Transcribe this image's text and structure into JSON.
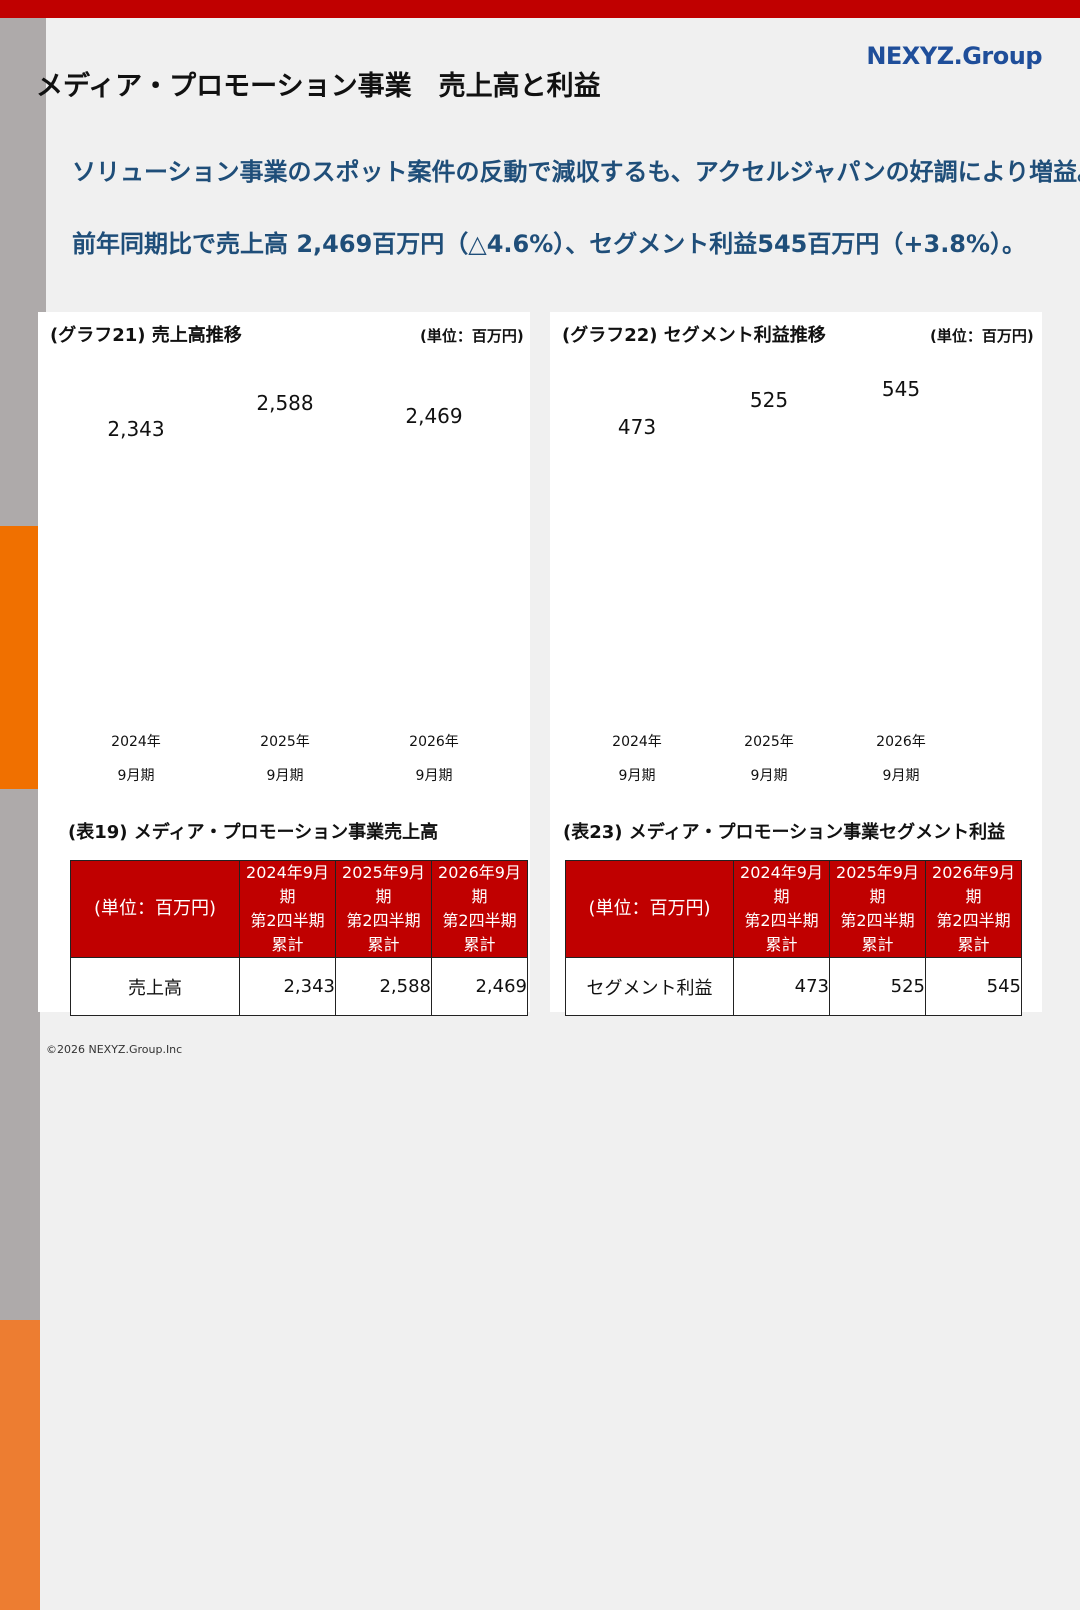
{
  "header": {
    "title": "メディア・プロモーション事業　売上高と利益",
    "logo": "NEXYZ.Group"
  },
  "headline": [
    "ソリューション事業のスポット案件の反動で減収するも、アクセルジャパンの好調により増益。",
    "前年同期比で売上高 2,469百万円（△4.6%）、セグメント利益545百万円（+3.8%）。"
  ],
  "chart_data": [
    {
      "type": "bar",
      "title": "(グラフ21) 売上高推移",
      "unit": "(単位：百万円)",
      "categories": [
        "2024年\n9月期",
        "2025年\n9月期",
        "2026年\n9月期"
      ],
      "values": [
        2343,
        2588,
        2469
      ],
      "value_labels": [
        "2,343",
        "2,588",
        "2,469"
      ],
      "colors": [
        "#aeaaaa",
        "#aeaaaa",
        "#f07000"
      ]
    },
    {
      "type": "bar",
      "title": "(グラフ22) セグメント利益推移",
      "unit": "(単位：百万円)",
      "categories": [
        "2024年\n9月期",
        "2025年\n9月期",
        "2026年\n9月期"
      ],
      "values": [
        473,
        525,
        545
      ],
      "colors": [
        "#aeaaaa",
        "#aeaaaa",
        "#ed7d31"
      ]
    }
  ],
  "tables": [
    {
      "caption": "(表19) メディア・プロモーション事業売上高",
      "header": [
        "(単位：百万円)",
        "2024年9月期\n第2四半期\n累計",
        "2025年9月期\n第2四半期\n累計",
        "2026年9月期\n第2四半期\n累計"
      ],
      "rows": [
        [
          "売上高",
          "2,343",
          "2,588",
          "2,469"
        ]
      ]
    },
    {
      "caption": "(表23) メディア・プロモーション事業セグメント利益",
      "header": [
        "(単位：百万円)",
        "2024年9月期\n第2四半期\n累計",
        "2025年9月期\n第2四半期\n累計",
        "2026年9月期\n第2四半期\n累計"
      ],
      "rows": [
        [
          "セグメント利益",
          "473",
          "525",
          "545"
        ]
      ]
    }
  ],
  "footer": "©2026 NEXYZ.Group.Inc"
}
